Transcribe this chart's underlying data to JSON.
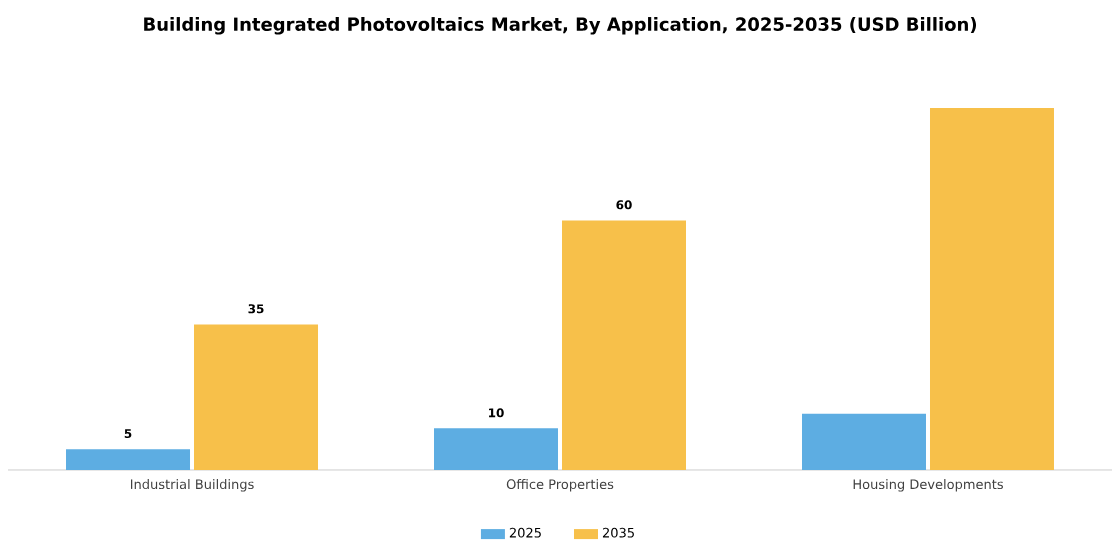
{
  "chart_data": {
    "type": "bar",
    "title": "Building Integrated Photovoltaics Market, By Application, 2025-2035 (USD Billion)",
    "categories": [
      "Industrial Buildings",
      "Office Properties",
      "Housing Developments"
    ],
    "series": [
      {
        "name": "2025",
        "color": "#5dade2",
        "values": [
          5,
          10,
          13.5
        ],
        "value_labels": [
          "5",
          "10",
          null
        ]
      },
      {
        "name": "2035",
        "color": "#f7c04a",
        "values": [
          35,
          60,
          87
        ],
        "value_labels": [
          "35",
          "60",
          null
        ]
      }
    ],
    "legend": "bottom"
  }
}
